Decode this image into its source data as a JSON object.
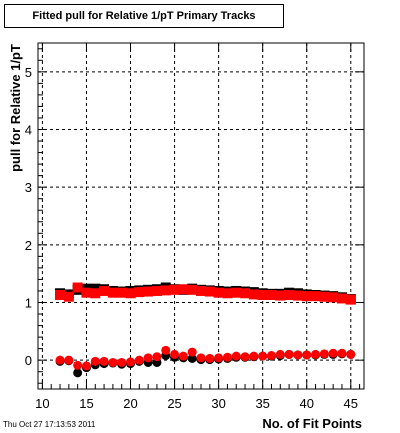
{
  "title": "Fitted pull for Relative 1/pT Primary Tracks",
  "timestamp": "Thu Oct 27 17:13:53 2011",
  "chart_data": {
    "type": "scatter",
    "xlabel": "No. of Fit Points",
    "ylabel": "pull for Relative 1/pT",
    "xlim": [
      9.5,
      46.5
    ],
    "ylim": [
      -0.5,
      5.5
    ],
    "xticks": [
      "10",
      "15",
      "20",
      "25",
      "30",
      "35",
      "40",
      "45"
    ],
    "yticks": [
      "0",
      "1",
      "2",
      "3",
      "4",
      "5"
    ],
    "grid": true,
    "x": [
      12,
      13,
      14,
      15,
      16,
      17,
      18,
      19,
      20,
      21,
      22,
      23,
      24,
      25,
      26,
      27,
      28,
      29,
      30,
      31,
      32,
      33,
      34,
      35,
      36,
      37,
      38,
      39,
      40,
      41,
      42,
      43,
      44,
      45
    ],
    "series": [
      {
        "color": "#000000",
        "marker": "square",
        "values": [
          1.16,
          1.14,
          1.22,
          1.24,
          1.24,
          1.23,
          1.2,
          1.19,
          1.2,
          1.21,
          1.22,
          1.23,
          1.26,
          1.23,
          1.22,
          1.24,
          1.22,
          1.21,
          1.2,
          1.19,
          1.2,
          1.19,
          1.18,
          1.16,
          1.15,
          1.15,
          1.17,
          1.16,
          1.14,
          1.13,
          1.12,
          1.11,
          1.09,
          1.06
        ]
      },
      {
        "color": "#ff0000",
        "marker": "square",
        "values": [
          1.13,
          1.1,
          1.26,
          1.17,
          1.16,
          1.2,
          1.17,
          1.17,
          1.16,
          1.18,
          1.19,
          1.2,
          1.21,
          1.22,
          1.23,
          1.22,
          1.2,
          1.19,
          1.17,
          1.16,
          1.17,
          1.16,
          1.14,
          1.13,
          1.13,
          1.12,
          1.13,
          1.12,
          1.11,
          1.11,
          1.1,
          1.09,
          1.07,
          1.05
        ]
      },
      {
        "color": "#000000",
        "marker": "circle",
        "values": [
          -0.02,
          -0.01,
          -0.22,
          -0.13,
          -0.08,
          -0.06,
          -0.05,
          -0.07,
          -0.06,
          -0.02,
          -0.04,
          -0.04,
          0.08,
          0.05,
          0.04,
          0.03,
          0.01,
          0.01,
          0.02,
          0.03,
          0.05,
          0.05,
          0.06,
          0.07,
          0.07,
          0.08,
          0.1,
          0.09,
          0.09,
          0.09,
          0.1,
          0.1,
          0.11,
          0.1
        ]
      },
      {
        "color": "#ff0000",
        "marker": "circle",
        "values": [
          0.0,
          0.0,
          -0.09,
          -0.1,
          -0.02,
          -0.02,
          -0.04,
          -0.04,
          -0.03,
          0.0,
          0.04,
          0.06,
          0.17,
          0.1,
          0.07,
          0.14,
          0.04,
          0.03,
          0.04,
          0.05,
          0.07,
          0.06,
          0.07,
          0.07,
          0.08,
          0.1,
          0.1,
          0.09,
          0.09,
          0.1,
          0.11,
          0.12,
          0.12,
          0.1
        ]
      }
    ]
  }
}
